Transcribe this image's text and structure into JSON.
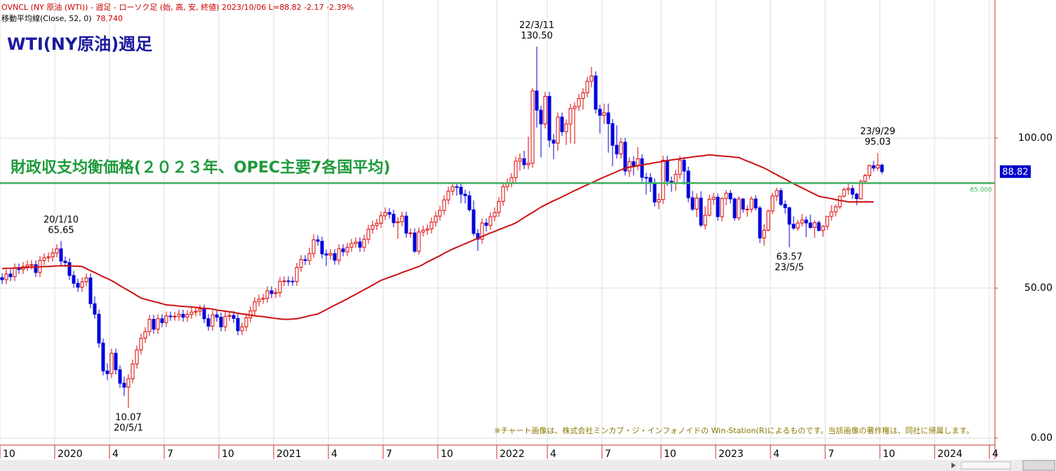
{
  "header": {
    "info": "OVNCL (NY 原油 (WTI)) - 週足 - ローソク足 (始, 高, 安, 終値)  2023/10/06 L=88.82 -2.17  -2.39%"
  },
  "chart_data": {
    "type": "candlestick",
    "title": "WTI(NY原油)週足",
    "categories": [
      "10",
      null,
      null,
      null,
      null,
      null,
      null,
      null,
      null,
      null,
      null,
      null,
      null,
      "2020",
      null,
      null,
      null,
      null,
      null,
      null,
      null,
      null,
      null,
      null,
      null,
      null,
      "4",
      null,
      null,
      null,
      null,
      null,
      null,
      null,
      null,
      null,
      null,
      null,
      null,
      "7",
      null,
      null,
      null,
      null,
      null,
      null,
      null,
      null,
      null,
      null,
      null,
      null,
      "10",
      null,
      null,
      null,
      null,
      null,
      null,
      null,
      null,
      null,
      null,
      null,
      null,
      "2021",
      null,
      null,
      null,
      null,
      null,
      null,
      null,
      null,
      null,
      null,
      null,
      null,
      "4",
      null,
      null,
      null,
      null,
      null,
      null,
      null,
      null,
      null,
      null,
      null,
      null,
      "7",
      null,
      null,
      null,
      null,
      null,
      null,
      null,
      null,
      null,
      null,
      null,
      null,
      "10",
      null,
      null,
      null,
      null,
      null,
      null,
      null,
      null,
      null,
      null,
      null,
      null,
      null,
      "2022",
      null,
      null,
      null,
      null,
      null,
      null,
      null,
      null,
      null,
      null,
      null,
      "4",
      null,
      null,
      null,
      null,
      null,
      null,
      null,
      null,
      null,
      null,
      null,
      null,
      "7",
      null,
      null,
      null,
      null,
      null,
      null,
      null,
      null,
      null,
      null,
      null,
      null,
      null,
      "10",
      null,
      null,
      null,
      null,
      null,
      null,
      null,
      null,
      null,
      null,
      null,
      null,
      "2023",
      null,
      null,
      null,
      null,
      null,
      null,
      null,
      null,
      null,
      null,
      null,
      null,
      "4",
      null,
      null,
      null,
      null,
      null,
      null,
      null,
      null,
      null,
      null,
      null,
      null,
      "7",
      null,
      null,
      null,
      null,
      null,
      null,
      null,
      null,
      null,
      null,
      null,
      null,
      "10",
      null,
      null,
      null,
      null,
      null,
      null,
      null,
      null,
      null,
      null,
      null,
      null,
      "2024",
      null,
      null,
      null,
      null,
      null,
      null,
      null,
      null,
      null,
      null,
      null,
      null,
      "4"
    ],
    "open": [
      53.5,
      52.8,
      54.7,
      53.8,
      56.7,
      56.2,
      57.2,
      57.7,
      57.8,
      55.2,
      59.2,
      60.1,
      60.4,
      61.7,
      63.1,
      59.0,
      58.5,
      54.2,
      51.6,
      50.3,
      52.1,
      53.4,
      44.8,
      41.3,
      31.7,
      22.4,
      21.5,
      28.3,
      22.8,
      18.3,
      17.0,
      19.8,
      24.7,
      29.4,
      33.3,
      35.5,
      39.6,
      36.3,
      39.8,
      38.5,
      40.7,
      40.6,
      40.6,
      41.3,
      40.3,
      41.2,
      42.0,
      42.3,
      43.0,
      39.8,
      37.3,
      41.1,
      40.3,
      37.1,
      40.6,
      40.9,
      39.9,
      35.8,
      37.1,
      40.1,
      42.4,
      45.5,
      46.3,
      46.6,
      49.1,
      48.2,
      48.5,
      52.2,
      52.4,
      52.3,
      52.2,
      56.9,
      59.5,
      59.2,
      61.5,
      66.1,
      65.6,
      61.4,
      61.0,
      61.5,
      59.3,
      63.1,
      62.1,
      63.6,
      64.9,
      65.4,
      63.6,
      66.3,
      69.6,
      70.9,
      71.6,
      74.1,
      75.2,
      74.6,
      71.8,
      72.1,
      74.0,
      68.3,
      68.4,
      62.3,
      68.7,
      69.3,
      69.7,
      72.0,
      74.0,
      75.9,
      79.4,
      82.3,
      83.8,
      83.6,
      81.3,
      80.8,
      76.1,
      68.2,
      66.3,
      71.7,
      70.9,
      73.8,
      75.2,
      78.9,
      83.8,
      85.1,
      86.8,
      92.3,
      93.1,
      91.1,
      91.6,
      115.7,
      109.3,
      104.7,
      113.9,
      99.3,
      98.3,
      107.0,
      102.1,
      104.7,
      109.8,
      110.5,
      113.2,
      115.1,
      118.9,
      120.7,
      109.6,
      107.6,
      108.4,
      104.8,
      97.6,
      94.7,
      98.6,
      89.0,
      92.1,
      90.8,
      93.1,
      86.9,
      86.8,
      85.1,
      78.7,
      79.5,
      92.6,
      85.6,
      85.1,
      87.9,
      92.6,
      89.0,
      80.1,
      76.3,
      80.0,
      71.0,
      74.3,
      79.6,
      80.3,
      73.8,
      79.9,
      81.6,
      79.7,
      73.4,
      79.7,
      76.3,
      76.3,
      79.7,
      76.7,
      66.7,
      69.3,
      75.7,
      80.7,
      82.5,
      77.9,
      76.8,
      71.3,
      70.0,
      71.7,
      72.7,
      71.7,
      70.2,
      71.8,
      69.2,
      70.6,
      73.9,
      75.4,
      77.1,
      80.6,
      82.8,
      83.2,
      81.3,
      79.8,
      85.6,
      87.5,
      90.8,
      90.0,
      91.0,
      null,
      null,
      null,
      null,
      null,
      null,
      null,
      null,
      null,
      null,
      null,
      null,
      null,
      null,
      null,
      null,
      null,
      null,
      null,
      null,
      null,
      null,
      null,
      null,
      null,
      null
    ],
    "high": [
      55.0,
      56.2,
      56.2,
      58.2,
      58.2,
      58.7,
      59.2,
      59.3,
      59.3,
      60.7,
      61.6,
      61.9,
      63.2,
      64.6,
      65.65,
      60.5,
      60.0,
      55.7,
      53.1,
      53.6,
      54.9,
      54.9,
      47.3,
      42.8,
      33.2,
      25.0,
      29.8,
      29.8,
      24.3,
      20.5,
      21.3,
      26.2,
      30.9,
      34.8,
      37.0,
      41.1,
      41.1,
      41.3,
      41.3,
      42.2,
      42.2,
      42.1,
      42.8,
      42.8,
      42.7,
      43.5,
      43.8,
      44.5,
      44.5,
      41.3,
      42.6,
      42.6,
      41.8,
      42.1,
      42.4,
      42.4,
      41.4,
      38.6,
      41.6,
      43.9,
      47.0,
      47.8,
      48.1,
      50.6,
      50.6,
      50.0,
      53.7,
      53.9,
      53.9,
      53.8,
      58.4,
      61.0,
      61.0,
      63.5,
      67.9,
      67.6,
      67.1,
      62.9,
      63.0,
      63.0,
      64.6,
      64.6,
      65.1,
      66.4,
      66.9,
      66.9,
      67.8,
      71.1,
      72.4,
      73.1,
      75.6,
      76.9,
      76.7,
      76.1,
      73.6,
      75.5,
      75.5,
      69.9,
      69.9,
      70.2,
      70.8,
      71.2,
      73.5,
      75.5,
      77.4,
      80.9,
      83.8,
      85.3,
      85.3,
      85.1,
      82.8,
      82.3,
      79.2,
      69.7,
      73.2,
      73.2,
      75.3,
      76.9,
      80.4,
      85.3,
      86.6,
      88.3,
      93.8,
      94.9,
      95.8,
      100.5,
      116.6,
      130.5,
      110.8,
      115.4,
      115.4,
      101.3,
      108.5,
      108.5,
      106.2,
      111.4,
      112.0,
      114.7,
      116.6,
      120.4,
      123.7,
      122.2,
      111.1,
      111.5,
      111.5,
      106.3,
      104.2,
      100.1,
      100.1,
      93.6,
      94.0,
      97.0,
      94.6,
      88.4,
      88.3,
      86.6,
      81.6,
      94.1,
      94.1,
      87.2,
      89.4,
      94.1,
      93.7,
      90.5,
      82.4,
      81.5,
      82.3,
      77.3,
      81.1,
      81.8,
      81.5,
      80.3,
      82.7,
      82.7,
      80.2,
      80.6,
      80.0,
      77.6,
      80.6,
      81.0,
      77.4,
      71.3,
      76.2,
      81.8,
      83.5,
      83.3,
      79.2,
      77.1,
      73.9,
      72.7,
      74.7,
      73.9,
      74.5,
      72.6,
      72.5,
      71.0,
      74.0,
      77.6,
      77.9,
      80.9,
      83.5,
      84.9,
      84.3,
      81.8,
      86.1,
      88.1,
      91.2,
      92.4,
      95.03,
      91.5,
      null,
      null,
      null,
      null,
      null,
      null,
      null,
      null,
      null,
      null,
      null,
      null,
      null,
      null,
      null,
      null,
      null,
      null,
      null,
      null,
      null,
      null,
      null,
      null,
      null,
      null
    ],
    "low": [
      51.3,
      51.3,
      52.3,
      52.3,
      54.7,
      54.7,
      55.7,
      56.2,
      53.7,
      53.7,
      57.7,
      58.6,
      58.9,
      60.2,
      57.5,
      57.0,
      52.7,
      50.1,
      48.8,
      48.8,
      50.6,
      43.3,
      39.8,
      30.2,
      20.9,
      19.3,
      20.0,
      21.3,
      16.8,
      14.0,
      10.07,
      18.3,
      23.2,
      27.9,
      31.8,
      34.0,
      34.8,
      34.8,
      37.0,
      37.0,
      39.1,
      39.1,
      39.1,
      38.8,
      38.8,
      39.7,
      40.5,
      40.8,
      38.3,
      35.8,
      35.8,
      38.8,
      35.6,
      35.6,
      39.1,
      38.4,
      34.3,
      34.3,
      35.6,
      38.6,
      40.9,
      44.0,
      44.8,
      45.1,
      46.7,
      46.7,
      47.0,
      50.7,
      50.8,
      50.7,
      50.7,
      55.4,
      57.7,
      57.7,
      60.0,
      64.1,
      59.9,
      57.3,
      59.5,
      57.8,
      57.8,
      60.6,
      60.6,
      62.1,
      63.4,
      62.1,
      62.1,
      64.8,
      68.1,
      69.4,
      70.1,
      72.6,
      73.1,
      70.3,
      66.4,
      70.6,
      66.8,
      66.8,
      61.7,
      61.2,
      67.2,
      67.8,
      68.2,
      70.5,
      72.5,
      74.4,
      77.9,
      80.8,
      80.8,
      78.3,
      78.2,
      75.4,
      67.4,
      62.4,
      64.8,
      68.9,
      69.4,
      72.3,
      73.7,
      77.4,
      82.3,
      83.6,
      85.3,
      89.1,
      89.6,
      89.6,
      90.1,
      103.5,
      93.5,
      103.2,
      96.9,
      93.0,
      95.8,
      100.6,
      97.7,
      98.2,
      98.0,
      109.0,
      109.5,
      113.6,
      116.9,
      108.1,
      101.5,
      104.6,
      95.1,
      90.6,
      93.2,
      93.2,
      87.5,
      87.0,
      87.5,
      89.3,
      85.4,
      81.2,
      82.0,
      77.2,
      76.3,
      78.0,
      84.1,
      82.1,
      82.4,
      86.4,
      84.5,
      78.6,
      75.7,
      73.6,
      70.3,
      69.5,
      73.8,
      77.7,
      72.5,
      72.3,
      77.6,
      78.2,
      72.5,
      72.5,
      75.1,
      73.8,
      75.1,
      75.8,
      65.0,
      64.1,
      68.9,
      74.6,
      79.0,
      77.3,
      74.8,
      63.57,
      69.4,
      69.1,
      70.5,
      67.0,
      69.8,
      66.8,
      68.9,
      67.1,
      69.3,
      72.5,
      73.9,
      76.4,
      80.3,
      81.2,
      79.7,
      77.6,
      79.5,
      85.0,
      86.3,
      88.9,
      89.1,
      88.0,
      null,
      null,
      null,
      null,
      null,
      null,
      null,
      null,
      null,
      null,
      null,
      null,
      null,
      null,
      null,
      null,
      null,
      null,
      null,
      null,
      null,
      null,
      null,
      null,
      null,
      null
    ],
    "close": [
      52.8,
      54.7,
      53.8,
      56.7,
      56.2,
      57.2,
      57.7,
      57.8,
      55.2,
      59.2,
      60.1,
      60.4,
      61.7,
      63.1,
      59.0,
      58.5,
      54.2,
      51.6,
      50.3,
      52.1,
      53.4,
      44.8,
      41.3,
      31.7,
      22.4,
      21.5,
      28.3,
      22.8,
      18.3,
      17.0,
      19.8,
      24.7,
      29.4,
      33.3,
      35.5,
      39.6,
      36.3,
      39.8,
      38.5,
      40.7,
      40.6,
      40.6,
      41.3,
      40.3,
      41.2,
      42.0,
      42.3,
      43.0,
      39.8,
      37.3,
      41.1,
      40.3,
      37.1,
      40.6,
      40.9,
      39.9,
      35.8,
      37.1,
      40.1,
      42.4,
      45.5,
      46.3,
      46.6,
      49.1,
      48.2,
      48.5,
      52.2,
      52.4,
      52.3,
      52.2,
      56.9,
      59.5,
      59.2,
      61.5,
      66.1,
      65.6,
      61.4,
      61.0,
      61.5,
      59.3,
      63.1,
      62.1,
      63.6,
      64.9,
      65.4,
      63.6,
      66.3,
      69.6,
      70.9,
      71.6,
      74.1,
      75.2,
      74.6,
      71.8,
      72.1,
      74.0,
      68.3,
      68.4,
      62.3,
      68.7,
      69.3,
      69.7,
      72.0,
      74.0,
      75.9,
      79.4,
      82.3,
      83.8,
      83.6,
      81.3,
      80.8,
      76.1,
      68.2,
      66.3,
      71.7,
      70.9,
      73.8,
      75.2,
      78.9,
      83.8,
      85.1,
      86.8,
      92.3,
      93.1,
      91.1,
      91.6,
      115.7,
      109.3,
      104.7,
      113.9,
      99.3,
      98.3,
      107.0,
      102.1,
      104.7,
      109.8,
      110.5,
      113.2,
      115.1,
      118.9,
      120.7,
      109.6,
      107.6,
      108.4,
      104.8,
      97.6,
      94.7,
      98.6,
      89.0,
      92.1,
      90.8,
      93.1,
      86.9,
      86.8,
      85.1,
      78.7,
      79.5,
      92.6,
      85.6,
      85.1,
      87.9,
      92.6,
      89.0,
      80.1,
      76.3,
      80.0,
      71.0,
      74.3,
      79.6,
      80.3,
      73.8,
      79.9,
      81.6,
      79.7,
      73.4,
      79.7,
      76.3,
      76.3,
      79.7,
      76.7,
      66.7,
      69.3,
      75.7,
      80.7,
      82.5,
      77.9,
      76.8,
      71.3,
      70.0,
      71.7,
      72.7,
      71.7,
      70.2,
      71.8,
      69.2,
      70.6,
      73.9,
      75.4,
      77.1,
      80.6,
      82.8,
      83.2,
      81.3,
      79.8,
      85.6,
      87.5,
      90.8,
      90.0,
      91.0,
      88.82,
      null,
      null,
      null,
      null,
      null,
      null,
      null,
      null,
      null,
      null,
      null,
      null,
      null,
      null,
      null,
      null,
      null,
      null,
      null,
      null,
      null,
      null,
      null,
      null,
      null,
      null
    ],
    "up_color": "#dd0000",
    "down_color": "#0000dd",
    "moving_average": {
      "name": "移動平均線(Close, 52, 0)",
      "color": "#cc1111",
      "last_label": "78.740",
      "values": [
        56.5,
        56.6,
        56.6,
        56.7,
        56.8,
        56.8,
        56.9,
        57.0,
        57.0,
        57.1,
        57.2,
        57.2,
        57.3,
        57.4,
        57.4,
        57.5,
        57.4,
        57.3,
        57.3,
        57.2,
        56.5,
        55.8,
        55.2,
        54.5,
        53.8,
        53.2,
        52.5,
        51.7,
        50.8,
        50.0,
        49.2,
        48.4,
        47.5,
        46.7,
        46.3,
        45.9,
        45.5,
        45.2,
        44.8,
        44.4,
        44.3,
        44.2,
        44.0,
        43.9,
        43.8,
        43.7,
        43.6,
        43.4,
        43.3,
        43.2,
        43.0,
        42.7,
        42.5,
        42.3,
        42.1,
        41.9,
        41.6,
        41.4,
        41.2,
        41.0,
        40.8,
        40.6,
        40.5,
        40.3,
        40.1,
        39.9,
        39.7,
        39.6,
        39.6,
        39.7,
        39.8,
        40.1,
        40.4,
        40.8,
        41.1,
        41.4,
        42.1,
        42.8,
        43.6,
        44.3,
        45.0,
        45.7,
        46.4,
        47.2,
        47.9,
        48.7,
        49.5,
        50.2,
        51.0,
        51.8,
        52.6,
        53.1,
        53.6,
        54.1,
        54.6,
        55.2,
        55.7,
        56.2,
        56.7,
        57.2,
        57.9,
        58.7,
        59.4,
        60.1,
        60.8,
        61.6,
        62.3,
        63.0,
        63.6,
        64.2,
        64.8,
        65.4,
        66.0,
        66.6,
        67.2,
        67.8,
        68.4,
        68.9,
        69.5,
        70.0,
        70.6,
        71.1,
        71.7,
        72.6,
        73.5,
        74.4,
        75.2,
        76.1,
        77.0,
        77.7,
        78.4,
        79.1,
        79.7,
        80.4,
        81.1,
        81.8,
        82.5,
        83.1,
        83.8,
        84.4,
        85.1,
        85.7,
        86.4,
        87.0,
        87.6,
        88.2,
        88.8,
        89.4,
        90.0,
        90.3,
        90.5,
        90.8,
        91.0,
        91.3,
        91.5,
        91.8,
        92.0,
        92.3,
        92.5,
        92.7,
        92.9,
        93.1,
        93.3,
        93.5,
        93.7,
        93.9,
        94.0,
        94.2,
        94.4,
        94.3,
        94.1,
        94.0,
        93.9,
        93.8,
        93.6,
        93.5,
        92.9,
        92.3,
        91.8,
        91.2,
        90.6,
        90.0,
        89.3,
        88.5,
        87.8,
        87.0,
        86.3,
        85.5,
        84.8,
        84.1,
        83.4,
        82.7,
        82.0,
        81.3,
        80.6,
        80.3,
        80.1,
        79.8,
        79.5,
        79.2,
        79.0,
        78.7,
        78.7,
        78.7,
        78.7,
        78.7,
        78.7,
        78.74,
        null,
        null,
        null,
        null,
        null,
        null,
        null,
        null,
        null,
        null,
        null,
        null,
        null,
        null,
        null,
        null,
        null,
        null,
        null,
        null,
        null,
        null,
        null,
        null,
        null,
        null
      ]
    },
    "ylim": [
      -2.3,
      146
    ],
    "yticks": [
      {
        "value": 0,
        "label": "0.00"
      },
      {
        "value": 50,
        "label": "50.00"
      },
      {
        "value": 100,
        "label": "100.00"
      }
    ],
    "grid": true,
    "reference_line": {
      "value": 85,
      "label": "85.000",
      "text": "財政収支均衡価格(２０２３年、OPEC主要7各国平均)",
      "color": "#3cb060"
    },
    "last_price": {
      "value": 88.82,
      "label": "88.82",
      "color": "#0000cc"
    },
    "annotations": [
      {
        "date": "20/1/10",
        "value": 65.65,
        "label": "65.65",
        "at": "high"
      },
      {
        "date": "20/5/1",
        "value": 10.07,
        "label": "10.07",
        "at": "low"
      },
      {
        "date": "22/3/11",
        "value": 130.5,
        "label": "130.50",
        "at": "high"
      },
      {
        "date": "23/5/5",
        "value": 63.57,
        "label": "63.57",
        "at": "low"
      },
      {
        "date": "23/9/29",
        "value": 95.03,
        "label": "95.03",
        "at": "high"
      }
    ]
  },
  "footer": "※チャート画像は、株式会社ミンカブ・ジ・インフォノイドの Win-Station(R)によるものです。当該画像の著作権は、同社に帰属します。"
}
